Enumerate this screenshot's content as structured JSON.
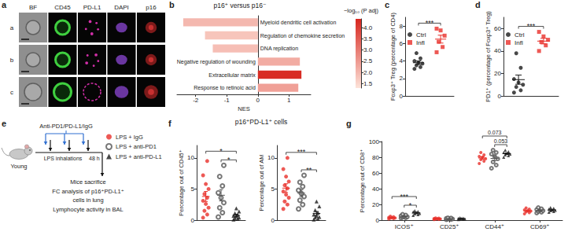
{
  "figure_panels": {
    "a": {
      "panel": "a",
      "columns": [
        "BF",
        "CD45",
        "PD-L1",
        "DAPI",
        "p16"
      ],
      "rows": [
        "a",
        "b",
        "c"
      ]
    },
    "e": {
      "panel": "e",
      "treatment": "Anti-PD1/PD-L1/IgG",
      "mouse": "Young",
      "exposure": "LPS inhalations",
      "interval": "48 h",
      "readout": [
        "Mice sacrifice",
        "FC analysis of p16⁺PD-L1⁺",
        "cells in lung",
        "Lymphocyte activity in BAL"
      ]
    }
  },
  "chart_data": [
    {
      "panel": "b",
      "type": "bar",
      "orientation": "horizontal",
      "title": "p16⁺ versus p16⁻",
      "xlabel": "NES",
      "categories": [
        "Myeloid dendritic cell activation",
        "Regulation of chemokine secretion",
        "DNA replication",
        "Negative regulation of wounding",
        "Extracellular matrix",
        "Response to retinoic acid"
      ],
      "values": [
        -2.4,
        -1.7,
        -1.45,
        1.35,
        1.4,
        1.3
      ],
      "padj": [
        2.0,
        1.8,
        1.9,
        2.2,
        4.3,
        2.4
      ],
      "colorbar": {
        "title": "−log₁₀ (P adj)",
        "range": [
          1.3,
          4.4
        ],
        "ticks": [
          1.5,
          {
            "value": 2,
            "label": "2.0"
          },
          2.5,
          {
            "value": 3,
            "label": "3.0"
          },
          3.5,
          {
            "value": 4,
            "label": "4.0"
          }
        ],
        "colors": [
          "#fde3d9",
          "#d7261e"
        ]
      },
      "xlim": [
        -2.6,
        1.7
      ],
      "xticks": [
        -2,
        -1,
        0,
        1
      ],
      "grid": false
    },
    {
      "panel": "c",
      "type": "scatter",
      "ylabel": "Foxp3⁺ Treg (percentage of CD4)",
      "ylim": [
        0,
        9
      ],
      "yticks": [
        0,
        2,
        4,
        6,
        8
      ],
      "grid": false,
      "tick_labels": "y",
      "legend": "upper left",
      "series": [
        {
          "name": "Ctrl",
          "color": "#1a1a1a",
          "marker": "circle",
          "values": [
            3.1,
            3.3,
            3.5,
            3.7,
            3.8,
            4.0,
            4.3,
            4.9
          ],
          "mean": 3.8,
          "sem": 0.2
        },
        {
          "name": "Infl",
          "color": "#e8302a",
          "marker": "square",
          "values": [
            5.0,
            5.6,
            6.2,
            6.9,
            7.5,
            7.7
          ],
          "mean": 6.5,
          "sem": 0.45
        }
      ],
      "annotations": [
        {
          "text": "***",
          "groups": [
            0,
            1
          ]
        }
      ]
    },
    {
      "panel": "d",
      "type": "scatter",
      "ylabel": "PD1⁺ (percentage of Foxp3⁺ Treg)",
      "ylim": [
        0,
        70
      ],
      "yticks": [
        0,
        20,
        40,
        60
      ],
      "grid": false,
      "tick_labels": "y",
      "legend": "upper left",
      "series": [
        {
          "name": "Ctrl",
          "color": "#1a1a1a",
          "marker": "circle",
          "values": [
            3,
            5,
            8,
            10,
            12,
            15,
            25,
            38
          ],
          "mean": 14.5,
          "sem": 4.1
        },
        {
          "name": "Infl",
          "color": "#e8302a",
          "marker": "square",
          "values": [
            40,
            45,
            48,
            50,
            53,
            57
          ],
          "mean": 48.8,
          "sem": 2.5
        }
      ],
      "annotations": [
        {
          "text": "***",
          "groups": [
            0,
            1
          ]
        }
      ]
    },
    {
      "panel": "f",
      "type": "scatter",
      "title": "p16⁺PD-L1⁺ cells",
      "ylabel": "Percentage out of CD45⁺",
      "ylim": [
        0,
        12
      ],
      "yticks": [
        0,
        5,
        10
      ],
      "grid": false,
      "tick_labels": "y",
      "series": [
        {
          "name": "LPS + IgG",
          "color": "#e8302a",
          "marker": "circle",
          "values": [
            0.4,
            0.9,
            1.5,
            2.0,
            2.6,
            3.1,
            3.6,
            4.2,
            5.0,
            5.8,
            7.2,
            9.5
          ],
          "mean": 3.8,
          "sem": 0.8
        },
        {
          "name": "LPS + anti-PD1",
          "color": "#555555",
          "marker": "open_circle",
          "values": [
            0.5,
            1.2,
            2.0,
            2.8,
            3.6,
            4.4,
            5.5,
            7.0,
            8.8
          ],
          "mean": 4.0,
          "sem": 0.9
        },
        {
          "name": "LPS + anti-PD-L1",
          "color": "#1a1a1a",
          "marker": "triangle",
          "values": [
            0.1,
            0.2,
            0.3,
            0.4,
            0.6,
            0.7,
            0.9,
            1.1,
            1.4,
            1.9
          ],
          "mean": 0.76,
          "sem": 0.18
        }
      ],
      "annotations": [
        {
          "text": "*",
          "groups": [
            1,
            2
          ]
        },
        {
          "text": "*",
          "groups": [
            0,
            2
          ]
        }
      ]
    },
    {
      "type": "scatter",
      "ylabel": "Percentage out of AM",
      "ylim": [
        0,
        12
      ],
      "yticks": [
        0,
        5,
        10
      ],
      "grid": false,
      "tick_labels": "y",
      "series": [
        {
          "name": "LPS + IgG",
          "color": "#e8302a",
          "marker": "circle",
          "values": [
            1.8,
            2.5,
            3.0,
            3.6,
            4.1,
            4.6,
            5.1,
            5.6,
            6.2,
            7.0,
            8.2,
            10.0
          ],
          "mean": 5.14,
          "sem": 0.7
        },
        {
          "name": "LPS + anti-PD1",
          "color": "#555555",
          "marker": "open_circle",
          "values": [
            1.8,
            2.5,
            3.2,
            3.8,
            4.3,
            4.8,
            5.4,
            6.1,
            7.2
          ],
          "mean": 4.34,
          "sem": 0.55
        },
        {
          "name": "LPS + anti-PD-L1",
          "color": "#1a1a1a",
          "marker": "triangle",
          "values": [
            0.1,
            0.2,
            0.4,
            0.5,
            0.7,
            0.9,
            1.2,
            1.6,
            2.2,
            3.0
          ],
          "mean": 1.08,
          "sem": 0.3
        }
      ],
      "annotations": [
        {
          "text": "**",
          "groups": [
            1,
            2
          ]
        },
        {
          "text": "***",
          "groups": [
            0,
            2
          ]
        }
      ]
    },
    {
      "panel": "g",
      "type": "scatter",
      "ylabel": "Percentage out of CD8⁺",
      "categories": [
        "ICOS⁺",
        "CD25⁺",
        "CD44⁺",
        "CD69⁺"
      ],
      "ylim": [
        0,
        100
      ],
      "yticks": [
        0,
        20,
        40,
        60,
        80,
        100
      ],
      "grid": false,
      "series": [
        {
          "name": "LPS + IgG",
          "color": "#e8302a",
          "marker": "circle",
          "values": [
            [
              1.5,
              2.0,
              2.4,
              2.8,
              3.2,
              3.6,
              4.2,
              5.0
            ],
            [
              0.8,
              1.0,
              1.2,
              1.5,
              1.8,
              2.1,
              2.4,
              2.8
            ],
            [
              72,
              75,
              77,
              78,
              80,
              81,
              83,
              86
            ],
            [
              8,
              9.5,
              10.5,
              11.5,
              12,
              13,
              14,
              15.5
            ]
          ],
          "mean": [
            3.1,
            1.7,
            79,
            11.75
          ],
          "sem": [
            0.4,
            0.25,
            1.6,
            0.8
          ]
        },
        {
          "name": "LPS + anti-PD1",
          "color": "#555555",
          "marker": "open_circle",
          "values": [
            [
              2.5,
              3.0,
              3.8,
              4.2,
              4.8,
              5.5,
              6.5,
              7.5
            ],
            [
              0.5,
              0.9,
              1.2,
              1.5,
              1.9,
              2.2,
              2.6,
              3.0
            ],
            [
              66,
              70,
              74,
              78,
              81,
              84,
              86,
              89
            ],
            [
              9,
              10,
              11,
              12,
              12.5,
              13.5,
              14.5,
              16
            ]
          ],
          "mean": [
            4.7,
            1.7,
            78.5,
            12.3
          ],
          "sem": [
            0.6,
            0.3,
            2.8,
            0.8
          ]
        },
        {
          "name": "LPS + anti-PD-L1",
          "color": "#1a1a1a",
          "marker": "triangle",
          "values": [
            [
              6,
              7,
              8,
              8.5,
              9.5,
              10.5,
              11,
              12
            ],
            [
              0.8,
              1.1,
              1.4,
              1.6,
              1.9,
              2.3,
              2.6,
              3.1
            ],
            [
              80,
              82,
              83,
              84,
              85,
              86,
              87,
              89
            ],
            [
              10,
              11,
              12,
              12.5,
              13,
              14,
              15,
              16
            ]
          ],
          "mean": [
            9.1,
            1.85,
            84.5,
            12.9
          ],
          "sem": [
            0.7,
            0.28,
            1.0,
            0.7
          ]
        }
      ],
      "annotations": [
        {
          "text": "*",
          "category": 0,
          "groups": [
            1,
            2
          ]
        },
        {
          "text": "***",
          "category": 0,
          "groups": [
            0,
            2
          ]
        },
        {
          "text": "0.053",
          "category": 2,
          "groups": [
            1,
            2
          ]
        },
        {
          "text": "0.073",
          "category": 2,
          "groups": [
            0,
            2
          ]
        }
      ]
    }
  ]
}
